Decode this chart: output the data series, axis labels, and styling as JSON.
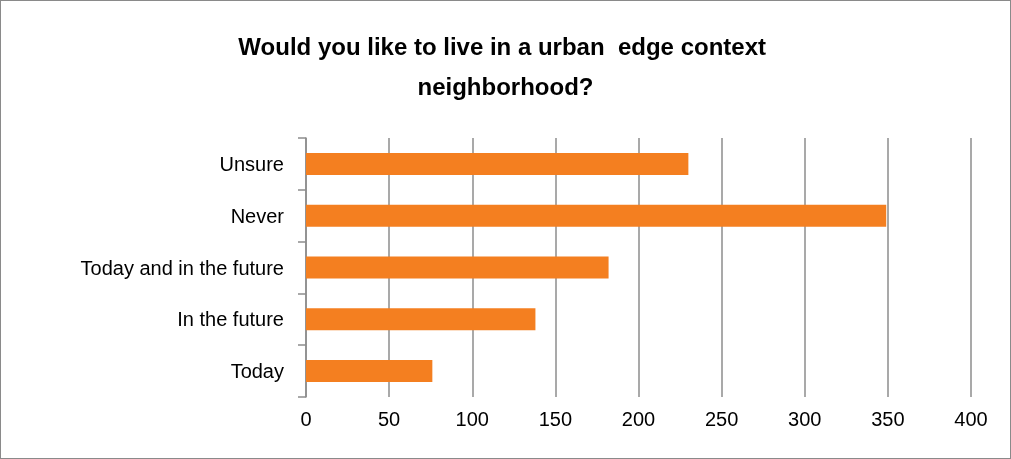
{
  "chart_data": {
    "type": "bar",
    "orientation": "horizontal",
    "title": "Would you like to live in a urban  edge context neighborhood?",
    "categories": [
      "Unsure",
      "Never",
      "Today and in the future",
      "In the future",
      "Today"
    ],
    "values": [
      230,
      349,
      182,
      138,
      76
    ],
    "color": "#f47f20",
    "xlim": [
      0,
      400
    ],
    "xticks": [
      0,
      50,
      100,
      150,
      200,
      250,
      300,
      350,
      400
    ],
    "grid": "x"
  }
}
